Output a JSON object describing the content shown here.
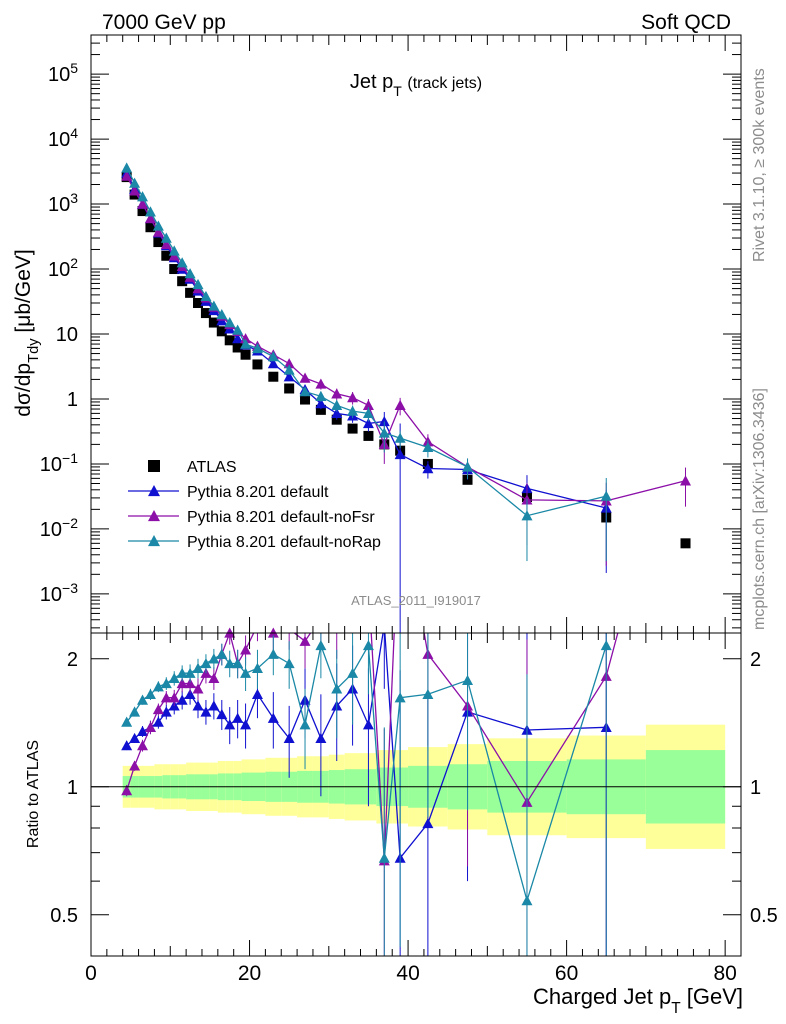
{
  "header": {
    "energy": "7000 GeV pp",
    "process": "Soft QCD",
    "side_rivet": "Rivet 3.1.10, ≥ 300k events",
    "side_site": "mcplots.cern.ch [arXiv:1306.3436]",
    "analysis": "ATLAS_2011_I919017"
  },
  "chart_data": [
    {
      "type": "scatter",
      "panel": "main",
      "title": "Jet pT (track jets)",
      "xlabel": "Charged Jet pT [GeV]",
      "ylabel": "dσ/dpTdy [μb/GeV]",
      "xlim": [
        0,
        82
      ],
      "ylim": [
        0.00025,
        400000
      ],
      "ylog": true,
      "ytick_labels": [
        "10^-3",
        "10^-2",
        "10^-1",
        "1",
        "10",
        "10^2",
        "10^3",
        "10^4",
        "10^5"
      ],
      "legend_position": "middle-left",
      "x": [
        4.5,
        5.5,
        6.5,
        7.5,
        8.5,
        9.5,
        10.5,
        11.5,
        12.5,
        13.5,
        14.5,
        15.5,
        16.5,
        17.5,
        18.5,
        19.5,
        21,
        23,
        25,
        27,
        29,
        31,
        33,
        35,
        37,
        39,
        42.5,
        47.5,
        55,
        65,
        75
      ],
      "series": [
        {
          "name": "ATLAS",
          "color": "#000000",
          "marker": "square",
          "values": [
            2600.0,
            1400.0,
            780.0,
            440.0,
            260.0,
            160.0,
            100.0,
            65.0,
            43.0,
            30.0,
            21.0,
            15.0,
            11.0,
            8.0,
            6.2,
            4.8,
            3.4,
            2.2,
            1.45,
            0.98,
            0.68,
            0.48,
            0.35,
            0.27,
            0.2,
            0.16,
            0.1,
            0.057,
            0.031,
            0.015,
            0.006
          ],
          "errors": [],
          "ratio": []
        },
        {
          "name": "Pythia 8.201 default",
          "color": "#1010d0",
          "marker": "triangle",
          "values": [
            3000.0,
            1700.0,
            1000.0,
            600.0,
            360.0,
            230.0,
            150.0,
            100.0,
            70.0,
            46.0,
            32.0,
            23.0,
            16.0,
            12.0,
            8.5,
            6.8,
            5.5,
            3.5,
            2.2,
            1.4,
            0.85,
            0.6,
            0.55,
            0.42,
            0.45,
            0.14,
            0.085,
            0.082,
            0.042,
            0.021
          ],
          "errors": [
            0,
            0,
            0,
            0,
            0,
            0,
            0,
            0,
            0,
            0,
            0,
            0.05,
            0.05,
            0.05,
            0.05,
            0.05,
            0.08,
            0.1,
            0.12,
            0.15,
            0.18,
            0.2,
            0.22,
            0.25,
            0.4,
            2.0,
            0.3,
            0.3,
            0.6,
            0.9
          ],
          "ratio": [
            1.25,
            1.3,
            1.35,
            1.38,
            1.42,
            1.5,
            1.55,
            1.6,
            1.65,
            1.55,
            1.5,
            1.55,
            1.48,
            1.4,
            1.45,
            1.4,
            1.65,
            1.45,
            1.3,
            1.6,
            1.3,
            1.55,
            1.7,
            1.4,
            2.4,
            0.68,
            0.82,
            1.5,
            1.36,
            1.38
          ],
          "ratio_errors": [
            0.03,
            0.03,
            0.04,
            0.05,
            0.05,
            0.06,
            0.07,
            0.08,
            0.09,
            0.1,
            0.1,
            0.11,
            0.12,
            0.14,
            0.15,
            0.17,
            0.2,
            0.22,
            0.25,
            0.3,
            0.35,
            0.4,
            0.45,
            0.5,
            0.7,
            1.2,
            0.8,
            0.9,
            1.3,
            1.8
          ]
        },
        {
          "name": "Pythia 8.201 default-noFsr",
          "color": "#8c0fa8",
          "marker": "triangle",
          "values": [
            2700.0,
            1600.0,
            1000.0,
            600.0,
            370.0,
            240.0,
            160.0,
            110.0,
            75.0,
            50.0,
            36.0,
            26.0,
            19.0,
            14.0,
            11.0,
            8.5,
            6.5,
            4.8,
            3.5,
            2.1,
            1.7,
            1.2,
            1.05,
            0.8,
            0.2,
            0.8,
            0.22,
            0.09,
            0.028,
            0.027,
            0.055
          ],
          "errors": [
            0,
            0,
            0,
            0,
            0,
            0,
            0,
            0,
            0,
            0,
            0,
            0.05,
            0.05,
            0.05,
            0.05,
            0.05,
            0.08,
            0.1,
            0.12,
            0.15,
            0.18,
            0.2,
            0.22,
            0.25,
            0.5,
            0.3,
            0.3,
            0.35,
            0.8,
            0.9,
            0.6
          ],
          "ratio": [
            0.98,
            1.12,
            1.25,
            1.38,
            1.52,
            1.62,
            1.62,
            1.75,
            1.75,
            1.7,
            1.85,
            1.8,
            2.05,
            2.3,
            1.95,
            2.1,
            2.4,
            2.3,
            2.35,
            2.2,
            2.5,
            2.4,
            2.9,
            3.0,
            0.67,
            4.8,
            2.05,
            1.55,
            0.92,
            1.82,
            9.0
          ],
          "ratio_errors": [
            0.03,
            0.03,
            0.04,
            0.05,
            0.05,
            0.06,
            0.07,
            0.08,
            0.09,
            0.1,
            0.1,
            0.11,
            0.12,
            0.14,
            0.15,
            0.17,
            0.2,
            0.22,
            0.25,
            0.3,
            0.35,
            0.4,
            0.45,
            0.5,
            0.7,
            1.2,
            0.8,
            0.9,
            1.3,
            1.8,
            2.0
          ]
        },
        {
          "name": "Pythia 8.201 default-noRap",
          "color": "#1a88a6",
          "marker": "triangle",
          "values": [
            3600.0,
            2100.0,
            1300.0,
            760.0,
            460.0,
            300.0,
            190.0,
            125.0,
            85.0,
            58.0,
            38.0,
            27.0,
            20.0,
            15.0,
            11.5,
            7.0,
            6.0,
            4.5,
            2.8,
            1.3,
            1.1,
            0.8,
            0.65,
            0.6,
            0.3,
            0.25,
            0.18,
            0.09,
            0.016,
            0.032
          ],
          "errors": [
            0,
            0,
            0,
            0,
            0,
            0,
            0,
            0,
            0,
            0,
            0,
            0.05,
            0.05,
            0.05,
            0.05,
            0.05,
            0.08,
            0.1,
            0.12,
            0.15,
            0.18,
            0.2,
            0.22,
            0.25,
            0.5,
            0.3,
            0.3,
            0.35,
            0.8,
            0.9
          ],
          "ratio": [
            1.42,
            1.5,
            1.6,
            1.65,
            1.72,
            1.75,
            1.8,
            1.85,
            1.85,
            1.9,
            1.95,
            2.0,
            2.05,
            1.95,
            1.95,
            1.85,
            1.9,
            2.05,
            1.95,
            1.4,
            2.15,
            1.7,
            1.85,
            2.15,
            0.68,
            1.62,
            1.65,
            1.78,
            0.54,
            2.15
          ],
          "ratio_errors": [
            0.03,
            0.03,
            0.04,
            0.05,
            0.05,
            0.06,
            0.07,
            0.08,
            0.09,
            0.1,
            0.1,
            0.11,
            0.12,
            0.14,
            0.15,
            0.17,
            0.2,
            0.22,
            0.25,
            0.3,
            0.35,
            0.4,
            0.45,
            0.5,
            0.7,
            1.2,
            0.8,
            0.9,
            1.3,
            1.8
          ]
        }
      ]
    },
    {
      "type": "scatter",
      "panel": "ratio",
      "ylabel": "Ratio to ATLAS",
      "xlim": [
        0,
        82
      ],
      "ylim": [
        0.4,
        2.3
      ],
      "ylog": true,
      "ytick_labels": [
        "0.5",
        "1",
        "2"
      ],
      "xtick_labels": [
        "0",
        "20",
        "40",
        "60",
        "80"
      ],
      "uncertainty_bands": {
        "colors": {
          "inner": "#99ff99",
          "outer": "#ffff99"
        },
        "edges": [
          4,
          5,
          6,
          7,
          8,
          9,
          10,
          11,
          12,
          13,
          14,
          15,
          16,
          17,
          18,
          19,
          20,
          22,
          24,
          26,
          28,
          30,
          32,
          34,
          36,
          38,
          40,
          45,
          50,
          60,
          70,
          80
        ],
        "inner": [
          0.06,
          0.06,
          0.06,
          0.06,
          0.06,
          0.065,
          0.065,
          0.065,
          0.07,
          0.07,
          0.07,
          0.07,
          0.075,
          0.075,
          0.075,
          0.08,
          0.08,
          0.085,
          0.085,
          0.09,
          0.09,
          0.095,
          0.1,
          0.1,
          0.11,
          0.11,
          0.12,
          0.13,
          0.15,
          0.16,
          0.22
        ],
        "outer": [
          0.12,
          0.12,
          0.12,
          0.12,
          0.13,
          0.13,
          0.13,
          0.13,
          0.14,
          0.14,
          0.14,
          0.14,
          0.15,
          0.15,
          0.15,
          0.16,
          0.16,
          0.17,
          0.17,
          0.18,
          0.18,
          0.19,
          0.2,
          0.2,
          0.22,
          0.22,
          0.24,
          0.26,
          0.3,
          0.32,
          0.4
        ]
      }
    }
  ]
}
